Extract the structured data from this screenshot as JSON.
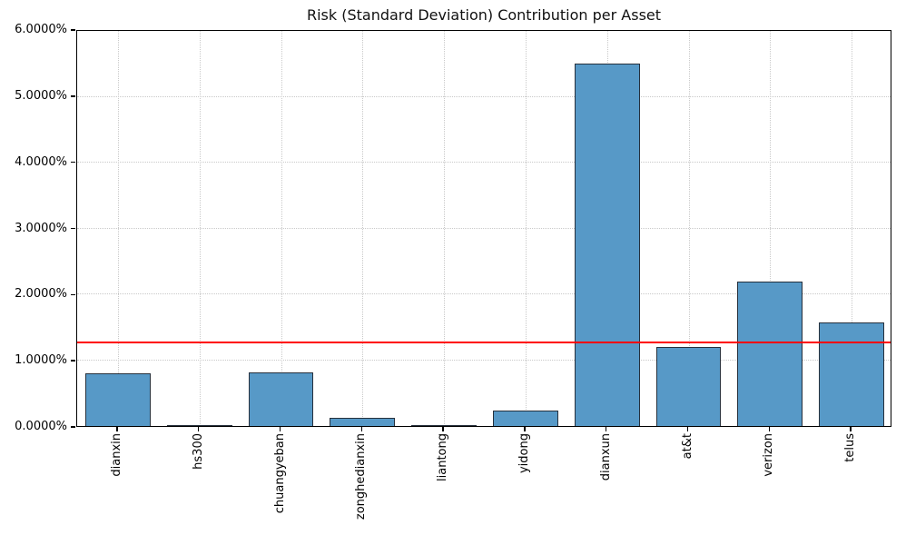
{
  "figure": {
    "background": "#ffffff"
  },
  "colors": {
    "bar_fill": "#5799c7",
    "bar_edge": "#26303c",
    "grid": "#c9c9c9",
    "threshold_line": "#ff0000",
    "axis": "#000000",
    "text": "#111111"
  },
  "chart_data": {
    "type": "bar",
    "title": "Risk (Standard Deviation) Contribution per Asset",
    "xlabel": "",
    "ylabel": "",
    "categories": [
      "dianxin",
      "hs300",
      "chuangyeban",
      "zonghedianxin",
      "liantong",
      "yidong",
      "dianxun",
      "at&t",
      "verizon",
      "telus"
    ],
    "values": [
      0.8,
      0.005,
      0.82,
      0.13,
      0.005,
      0.24,
      5.51,
      1.2,
      2.2,
      1.57
    ],
    "unit": "%",
    "ylim": [
      0,
      6
    ],
    "ytick_step": 1,
    "ytick_labels": [
      "0.0000%",
      "1.0000%",
      "2.0000%",
      "3.0000%",
      "4.0000%",
      "5.0000%",
      "6.0000%"
    ],
    "threshold_value": 1.25,
    "bar_width_fraction": 0.8,
    "grid": "dotted",
    "legend": "none",
    "xtick_rotation_deg": 90
  }
}
